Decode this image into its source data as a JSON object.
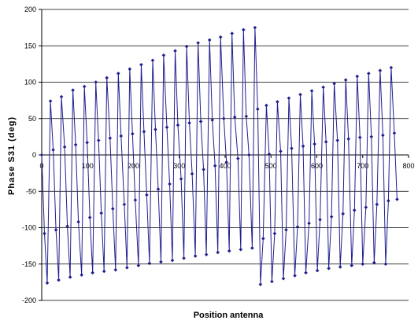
{
  "chart_data": {
    "type": "line",
    "title": "",
    "xlabel": "Position antenna",
    "ylabel": "Phase S31 (deg)",
    "xlim": [
      0,
      800
    ],
    "ylim": [
      -200,
      200
    ],
    "xticks": [
      0,
      100,
      200,
      300,
      400,
      500,
      600,
      700,
      800
    ],
    "yticks": [
      -200,
      -150,
      -100,
      -50,
      0,
      50,
      100,
      150,
      200
    ],
    "grid": "horizontal",
    "legend": "none",
    "series": [
      {
        "color": "#1f1f8f",
        "marker": "diamond",
        "x": [
          0,
          6,
          12,
          19,
          25,
          31,
          37,
          43,
          50,
          56,
          62,
          68,
          74,
          80,
          87,
          93,
          99,
          105,
          111,
          118,
          124,
          130,
          136,
          142,
          149,
          155,
          161,
          167,
          173,
          180,
          186,
          192,
          198,
          204,
          211,
          217,
          223,
          229,
          235,
          242,
          248,
          254,
          260,
          266,
          273,
          279,
          285,
          291,
          297,
          304,
          310,
          316,
          322,
          328,
          335,
          341,
          347,
          353,
          359,
          366,
          372,
          378,
          384,
          390,
          397,
          403,
          409,
          415,
          421,
          428,
          434,
          440,
          446,
          452,
          459,
          465,
          471,
          477,
          483,
          490,
          496,
          502,
          508,
          514,
          521,
          527,
          533,
          539,
          545,
          552,
          558,
          564,
          570,
          576,
          583,
          589,
          595,
          601,
          607,
          614,
          620,
          626,
          632,
          638,
          645,
          651,
          657,
          663,
          669,
          676,
          682,
          688,
          694,
          700,
          707,
          713,
          719,
          725,
          731,
          738,
          744,
          750,
          756,
          762,
          769,
          775
        ],
        "y": [
          0,
          -108,
          -176,
          74,
          7,
          -103,
          -172,
          80,
          11,
          -98,
          -168,
          89,
          14,
          -92,
          -165,
          94,
          17,
          -86,
          -162,
          100,
          20,
          -80,
          -160,
          106,
          23,
          -74,
          -158,
          112,
          26,
          -68,
          -155,
          118,
          29,
          -62,
          -152,
          124,
          32,
          -55,
          -149,
          130,
          35,
          -47,
          -147,
          137,
          38,
          -40,
          -145,
          143,
          41,
          -33,
          -142,
          149,
          44,
          -26,
          -139,
          154,
          46,
          -20,
          -137,
          158,
          48,
          -15,
          -134,
          162,
          50,
          -10,
          -132,
          167,
          52,
          -5,
          -130,
          172,
          53,
          0,
          -128,
          175,
          63,
          -178,
          -115,
          68,
          1,
          -174,
          -108,
          73,
          5,
          -170,
          -103,
          78,
          9,
          -166,
          -99,
          83,
          12,
          -162,
          -94,
          88,
          15,
          -159,
          -89,
          93,
          18,
          -156,
          -85,
          98,
          20,
          -154,
          -81,
          103,
          22,
          -152,
          -76,
          108,
          24,
          -150,
          -72,
          112,
          25,
          -148,
          -68,
          116,
          27,
          -150,
          -63,
          120,
          30,
          -61
        ]
      }
    ]
  }
}
